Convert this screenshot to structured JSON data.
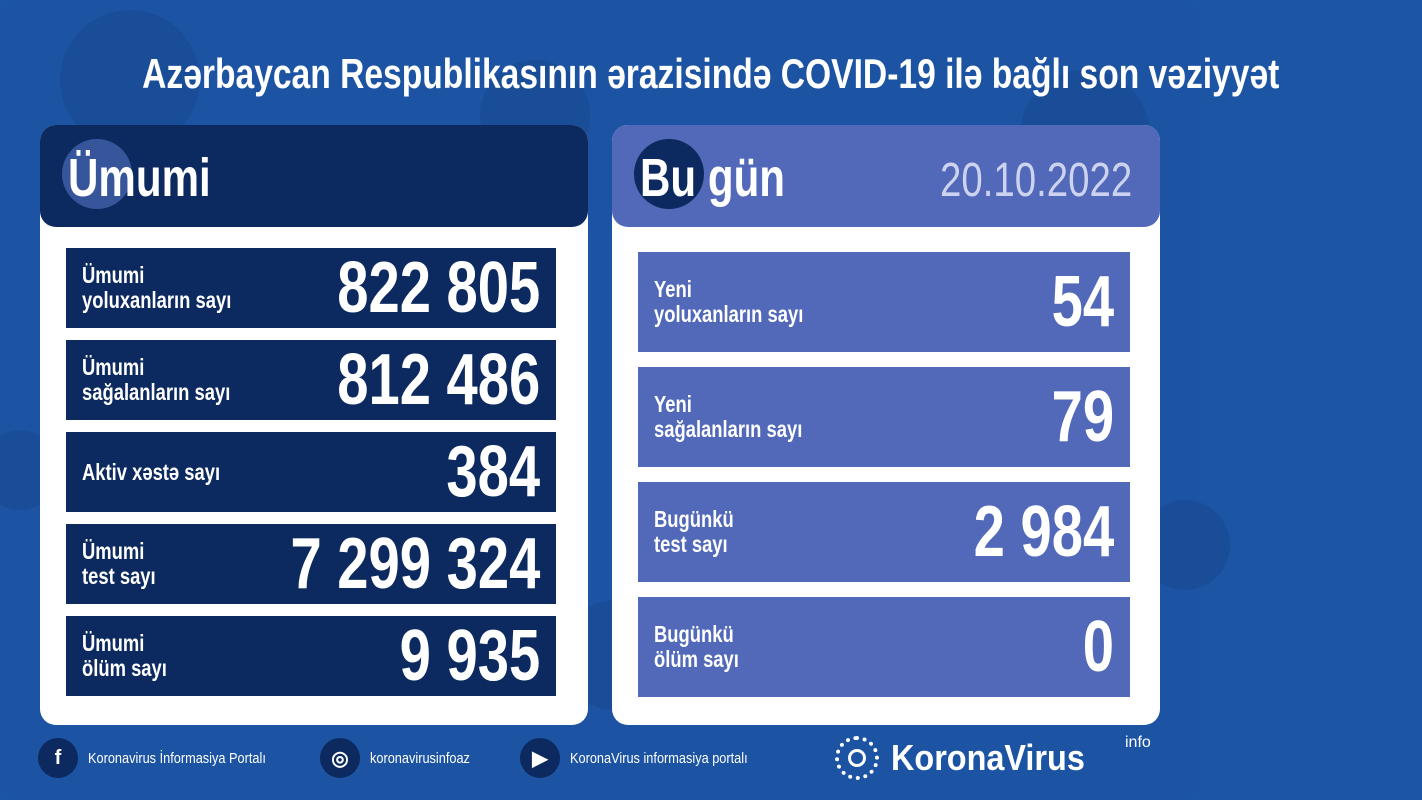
{
  "title": "Azərbaycan Respublikasının ərazisində COVID-19 ilə bağlı son vəziyyət",
  "colors": {
    "background": "#1c54a3",
    "dark_navy": "#0c2a5f",
    "today_blue": "#5169b8",
    "date": "#cdd3ef"
  },
  "total": {
    "heading": "Ümumi",
    "rows": [
      {
        "label1": "Ümumi",
        "label2": "yoluxanların sayı",
        "value": "822 805"
      },
      {
        "label1": "Ümumi",
        "label2": "sağalanların sayı",
        "value": "812 486"
      },
      {
        "label1": "Aktiv xəstə sayı",
        "label2": "",
        "value": "384"
      },
      {
        "label1": "Ümumi",
        "label2": "test sayı",
        "value": "7 299 324"
      },
      {
        "label1": "Ümumi",
        "label2": "ölüm sayı",
        "value": "9 935"
      }
    ]
  },
  "today": {
    "heading": "Bu gün",
    "date": "20.10.2022",
    "rows": [
      {
        "label1": "Yeni",
        "label2": "yoluxanların sayı",
        "value": "54"
      },
      {
        "label1": "Yeni",
        "label2": "sağalanların sayı",
        "value": "79"
      },
      {
        "label1": "Bugünkü",
        "label2": "test sayı",
        "value": "2 984"
      },
      {
        "label1": "Bugünkü",
        "label2": "ölüm sayı",
        "value": "0"
      }
    ]
  },
  "footer": {
    "facebook": "Koronavirus İnformasiya Portalı",
    "instagram": "koronavirusinfoaz",
    "youtube": "KoronaVirus informasiya portalı",
    "brand": "KoronaVirus",
    "brand_sup": "info",
    "icons": [
      "facebook-icon",
      "instagram-icon",
      "youtube-icon",
      "sun-logo-icon"
    ]
  }
}
